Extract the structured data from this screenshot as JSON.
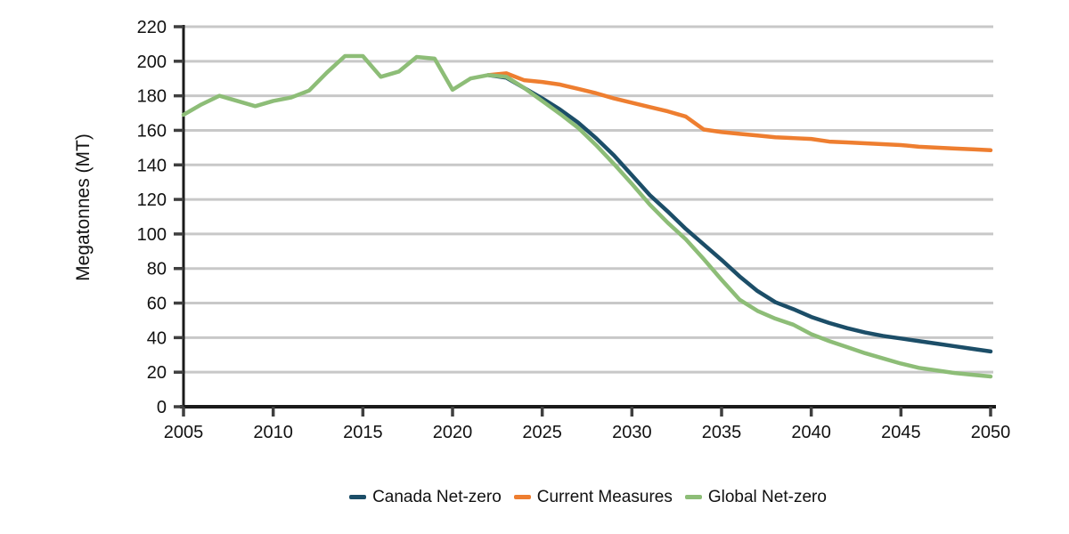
{
  "chart_data": {
    "type": "line",
    "title": "",
    "ylabel": "Megatonnes (MT)",
    "xlabel": "",
    "ylim": [
      0,
      220
    ],
    "ytick_step": 20,
    "grid": "horizontal",
    "grid_color": "#C8C8C8",
    "axis_color": "#1A1A1A",
    "tick_color": "#3F3F3F",
    "text_color": "#111111",
    "legend_position": "bottom",
    "x": [
      2005,
      2006,
      2007,
      2008,
      2009,
      2010,
      2011,
      2012,
      2013,
      2014,
      2015,
      2016,
      2017,
      2018,
      2019,
      2020,
      2021,
      2022,
      2023,
      2024,
      2025,
      2026,
      2027,
      2028,
      2029,
      2030,
      2031,
      2032,
      2033,
      2034,
      2035,
      2036,
      2037,
      2038,
      2039,
      2040,
      2041,
      2042,
      2043,
      2044,
      2045,
      2046,
      2047,
      2048,
      2049,
      2050
    ],
    "xticks": [
      2005,
      2010,
      2015,
      2020,
      2025,
      2030,
      2035,
      2040,
      2045,
      2050
    ],
    "series": [
      {
        "name": "Canada Net-zero",
        "color": "#1C4E68",
        "values": [
          null,
          null,
          null,
          null,
          null,
          null,
          null,
          null,
          null,
          null,
          null,
          null,
          null,
          null,
          null,
          null,
          null,
          192,
          190.5,
          184.5,
          178.5,
          172,
          164.5,
          155.5,
          145.5,
          134,
          122.5,
          113,
          103,
          94,
          85,
          75.5,
          67,
          60.5,
          56.5,
          52,
          48.5,
          45.5,
          43,
          41,
          39.5,
          38,
          36.5,
          35,
          33.5,
          32
        ]
      },
      {
        "name": "Current Measures",
        "color": "#EE7E30",
        "values": [
          null,
          null,
          null,
          null,
          null,
          null,
          null,
          null,
          null,
          null,
          null,
          null,
          null,
          null,
          null,
          null,
          null,
          192,
          193,
          189,
          188,
          186.5,
          184,
          181.5,
          178.5,
          176,
          173.5,
          171,
          168,
          160.5,
          159,
          158,
          157,
          156,
          155.5,
          155,
          153.5,
          153,
          152.5,
          152,
          151.5,
          150.5,
          150,
          149.5,
          149,
          148.5
        ]
      },
      {
        "name": "Global Net-zero",
        "color": "#8DBD77",
        "values": [
          169,
          175,
          180,
          177,
          174,
          177,
          179,
          183,
          193.5,
          203,
          203,
          191,
          194,
          202.5,
          201.5,
          183.5,
          190,
          192,
          191,
          184.5,
          177,
          169.5,
          161.5,
          151.5,
          140.5,
          129,
          117,
          106.5,
          97,
          85.5,
          73.5,
          62,
          55.5,
          51,
          47.5,
          42,
          38,
          34.5,
          31,
          28,
          25,
          22.5,
          21,
          19.5,
          18.5,
          17.5
        ]
      }
    ]
  }
}
